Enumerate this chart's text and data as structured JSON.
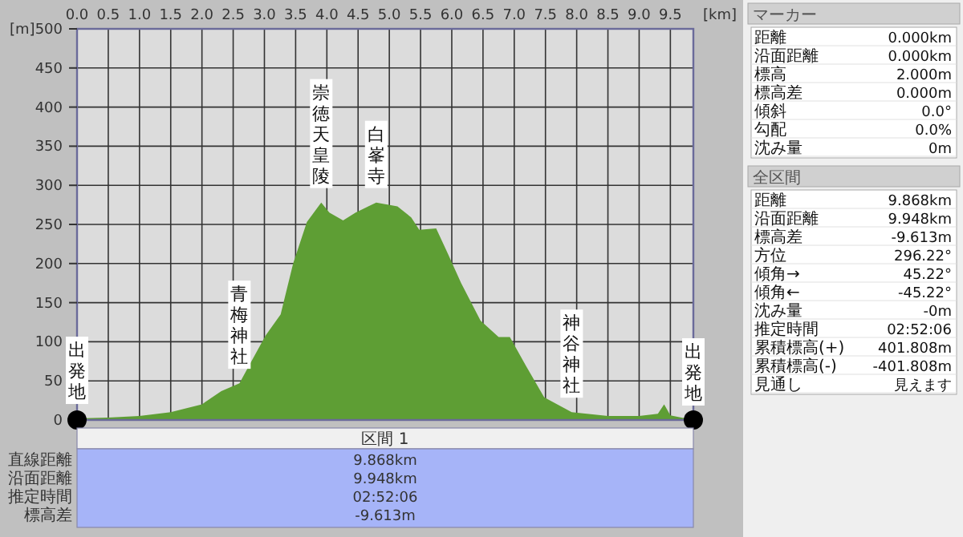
{
  "chart_data": [
    {
      "type": "area",
      "xlabel": "[km]",
      "ylabel": "[m]",
      "xlim": [
        0,
        9.868
      ],
      "ylim": [
        0,
        500
      ],
      "xticks": [
        {
          "value": 0,
          "label": "0.0"
        },
        0.5,
        {
          "value": 1,
          "label": "1.0"
        },
        1.5,
        {
          "value": 2,
          "label": "2.0"
        },
        2.5,
        {
          "value": 3,
          "label": "3.0"
        },
        3.5,
        {
          "value": 4,
          "label": "4.0"
        },
        4.5,
        {
          "value": 5,
          "label": "5.0"
        },
        5.5,
        {
          "value": 6,
          "label": "6.0"
        },
        6.5,
        {
          "value": 7,
          "label": "7.0"
        },
        7.5,
        {
          "value": 8,
          "label": "8.0"
        },
        8.5,
        {
          "value": 9,
          "label": "9.0"
        },
        9.5
      ],
      "yticks": [
        0,
        50,
        100,
        150,
        200,
        250,
        300,
        350,
        400,
        450,
        500
      ],
      "grid": true,
      "x": [
        0,
        0.5,
        1.0,
        1.5,
        2.0,
        2.31,
        2.6,
        2.75,
        3.02,
        3.26,
        3.46,
        3.68,
        3.91,
        4.04,
        4.26,
        4.46,
        4.79,
        5.13,
        5.35,
        5.48,
        5.75,
        5.93,
        6.15,
        6.46,
        6.75,
        6.93,
        7.19,
        7.48,
        7.92,
        8.5,
        9.0,
        9.3,
        9.4,
        9.5,
        9.868
      ],
      "series": [
        {
          "color": "#5e9e34",
          "values": [
            2,
            3,
            5,
            10,
            20,
            37,
            47,
            69,
            108,
            135,
            200,
            253,
            278,
            265,
            255,
            265,
            278,
            273,
            259,
            243,
            245,
            214,
            175,
            127,
            106,
            106,
            69,
            29,
            10,
            5,
            5,
            8,
            20,
            6,
            0
          ]
        }
      ],
      "annotations": [
        {
          "text": "出発地",
          "x": 0,
          "y": 2
        },
        {
          "text": "青梅神社",
          "x": 2.6,
          "y": 47
        },
        {
          "text": "崇徳天皇陵",
          "x": 3.91,
          "y": 278
        },
        {
          "text": "白峯寺",
          "x": 4.79,
          "y": 278
        },
        {
          "text": "神谷神社",
          "x": 7.92,
          "y": 10
        },
        {
          "text": "出発地",
          "x": 9.868,
          "y": 0
        }
      ]
    },
    {
      "type": "other",
      "title": "マーカー",
      "annotations": [
        "距離",
        "0.000km",
        "沿面距離",
        "0.000km",
        "標高",
        "2.000m",
        "標高差",
        "0.000m",
        "傾斜",
        "0.0°",
        "勾配",
        "0.0%",
        "沈み量",
        "0m"
      ]
    },
    {
      "type": "other",
      "title": "全区間",
      "annotations": [
        "距離",
        "9.868km",
        "沿面距離",
        "9.948km",
        "標高差",
        "-9.613m",
        "方位",
        "296.22°",
        "傾角→",
        "45.22°",
        "傾角←",
        "-45.22°",
        "沈み量",
        "-0m",
        "推定時間",
        "02:52:06",
        "累積標高(+)",
        "401.808m",
        "累積標高(-)",
        "-401.808m",
        "見通し",
        "見えます"
      ]
    },
    {
      "type": "other",
      "title": "区間 1",
      "annotations": [
        "直線距離",
        "9.868km",
        "沿面距離",
        "9.948km",
        "推定時間",
        "02:52:06",
        "標高差",
        "-9.613m"
      ]
    }
  ]
}
